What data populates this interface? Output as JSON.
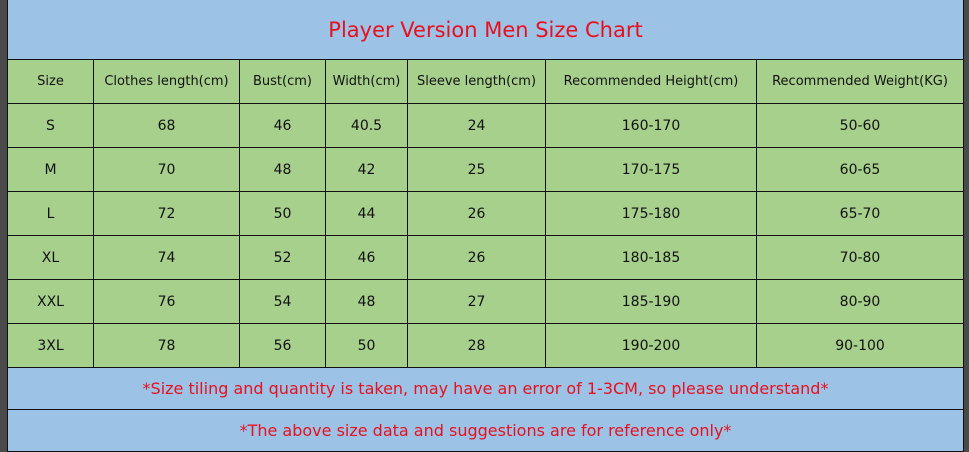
{
  "title": "Player Version Men Size Chart",
  "headers": [
    "Size",
    "Clothes length(cm)",
    "Bust(cm)",
    "Width(cm)",
    "Sleeve length(cm)",
    "Recommended Height(cm)",
    "Recommended Weight(KG)"
  ],
  "rows": [
    [
      "S",
      "68",
      "46",
      "40.5",
      "24",
      "160-170",
      "50-60"
    ],
    [
      "M",
      "70",
      "48",
      "42",
      "25",
      "170-175",
      "60-65"
    ],
    [
      "L",
      "72",
      "50",
      "44",
      "26",
      "175-180",
      "65-70"
    ],
    [
      "XL",
      "74",
      "52",
      "46",
      "26",
      "180-185",
      "70-80"
    ],
    [
      "XXL",
      "76",
      "54",
      "48",
      "27",
      "185-190",
      "80-90"
    ],
    [
      "3XL",
      "78",
      "56",
      "50",
      "28",
      "190-200",
      "90-100"
    ]
  ],
  "notes": [
    "*Size tiling and quantity is taken, may have an error of 1-3CM, so please understand*",
    "*The above size data and suggestions are for reference only*"
  ],
  "colors": {
    "header_bg": "#9cc2e6",
    "table_bg": "#a8d08d",
    "accent_text": "#e8101e"
  }
}
